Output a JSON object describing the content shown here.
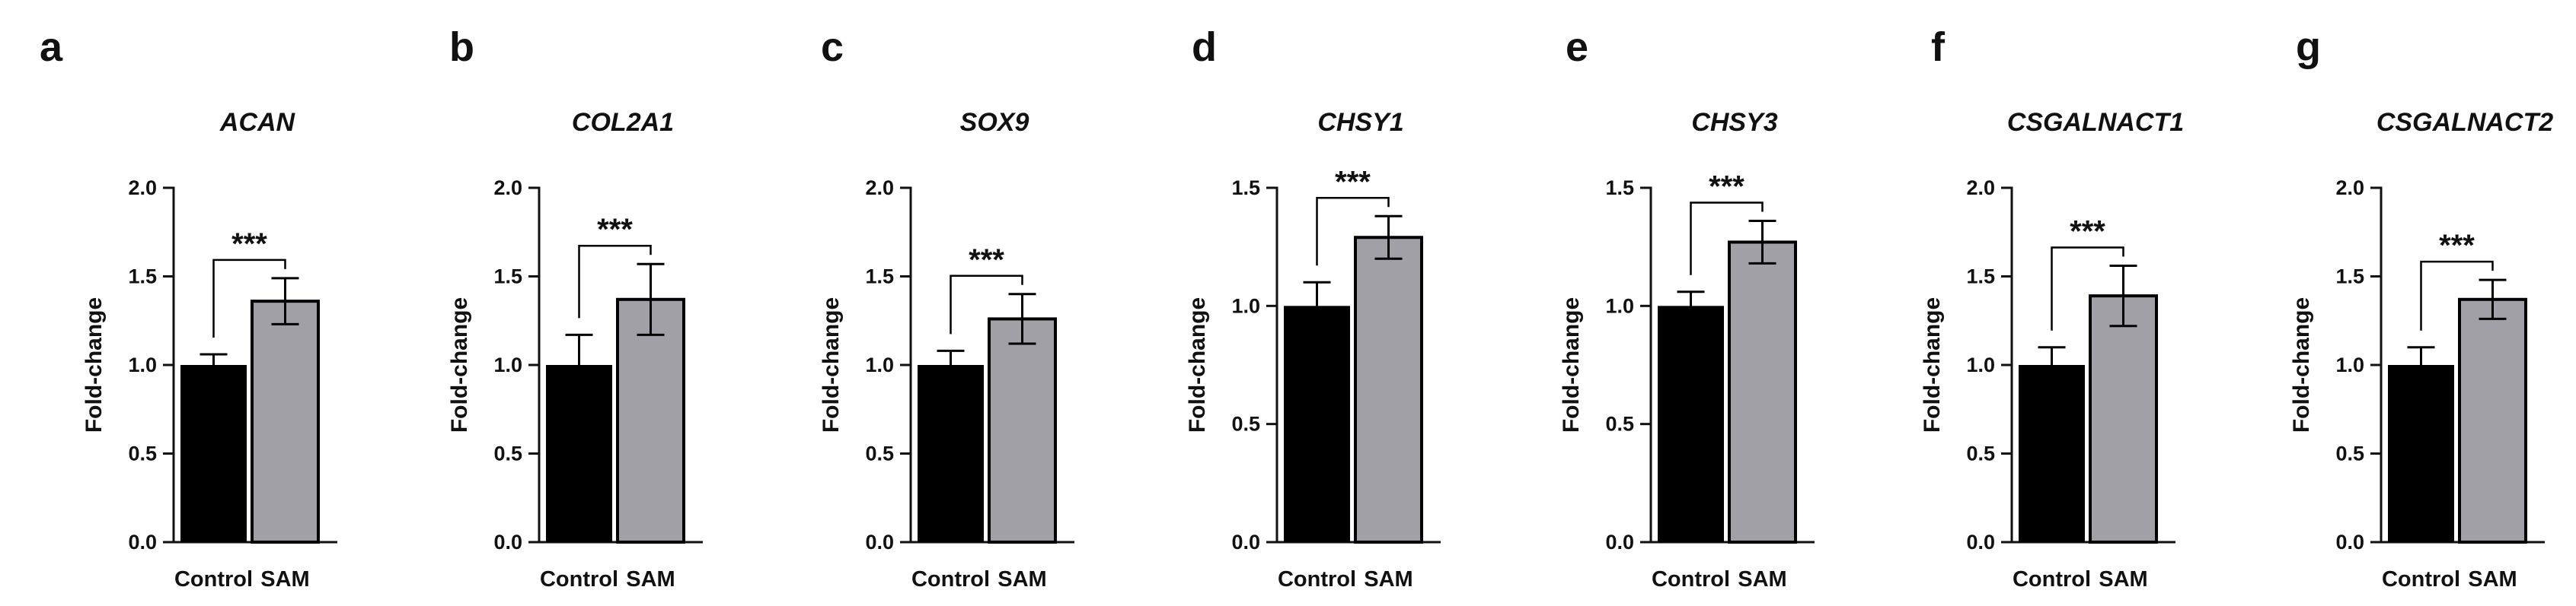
{
  "colors": {
    "control": "#000000",
    "sam": "#a0a0a6",
    "axis": "#111111"
  },
  "chart_data": [
    {
      "type": "bar",
      "panel": "a",
      "title": "ACAN",
      "xlabel": "",
      "ylabel": "Fold-change",
      "ylim": [
        0,
        2.0
      ],
      "yticks": [
        "0.0",
        "0.5",
        "1.0",
        "1.5",
        "2.0"
      ],
      "categories": [
        "Control",
        "SAM"
      ],
      "values": [
        1.0,
        1.36
      ],
      "errors": [
        0.06,
        0.13
      ],
      "significance": "***"
    },
    {
      "type": "bar",
      "panel": "b",
      "title": "COL2A1",
      "xlabel": "",
      "ylabel": "Fold-change",
      "ylim": [
        0,
        2.0
      ],
      "yticks": [
        "0.0",
        "0.5",
        "1.0",
        "1.5",
        "2.0"
      ],
      "categories": [
        "Control",
        "SAM"
      ],
      "values": [
        1.0,
        1.37
      ],
      "errors": [
        0.17,
        0.2
      ],
      "significance": "***"
    },
    {
      "type": "bar",
      "panel": "c",
      "title": "SOX9",
      "xlabel": "",
      "ylabel": "Fold-change",
      "ylim": [
        0,
        2.0
      ],
      "yticks": [
        "0.0",
        "0.5",
        "1.0",
        "1.5",
        "2.0"
      ],
      "categories": [
        "Control",
        "SAM"
      ],
      "values": [
        1.0,
        1.26
      ],
      "errors": [
        0.08,
        0.14
      ],
      "significance": "***"
    },
    {
      "type": "bar",
      "panel": "d",
      "title": "CHSY1",
      "xlabel": "",
      "ylabel": "Fold-change",
      "ylim": [
        0,
        1.5
      ],
      "yticks": [
        "0.0",
        "0.5",
        "1.0",
        "1.5"
      ],
      "categories": [
        "Control",
        "SAM"
      ],
      "values": [
        1.0,
        1.29
      ],
      "errors": [
        0.1,
        0.09
      ],
      "significance": "***"
    },
    {
      "type": "bar",
      "panel": "e",
      "title": "CHSY3",
      "xlabel": "",
      "ylabel": "Fold-change",
      "ylim": [
        0,
        1.5
      ],
      "yticks": [
        "0.0",
        "0.5",
        "1.0",
        "1.5"
      ],
      "categories": [
        "Control",
        "SAM"
      ],
      "values": [
        1.0,
        1.27
      ],
      "errors": [
        0.06,
        0.09
      ],
      "significance": "***"
    },
    {
      "type": "bar",
      "panel": "f",
      "title": "CSGALNACT1",
      "xlabel": "",
      "ylabel": "Fold-change",
      "ylim": [
        0,
        2.0
      ],
      "yticks": [
        "0.0",
        "0.5",
        "1.0",
        "1.5",
        "2.0"
      ],
      "categories": [
        "Control",
        "SAM"
      ],
      "values": [
        1.0,
        1.39
      ],
      "errors": [
        0.1,
        0.17
      ],
      "significance": "***"
    },
    {
      "type": "bar",
      "panel": "g",
      "title": "CSGALNACT2",
      "xlabel": "",
      "ylabel": "Fold-change",
      "ylim": [
        0,
        2.0
      ],
      "yticks": [
        "0.0",
        "0.5",
        "1.0",
        "1.5",
        "2.0"
      ],
      "categories": [
        "Control",
        "SAM"
      ],
      "values": [
        1.0,
        1.37
      ],
      "errors": [
        0.1,
        0.11
      ],
      "significance": "***"
    }
  ]
}
